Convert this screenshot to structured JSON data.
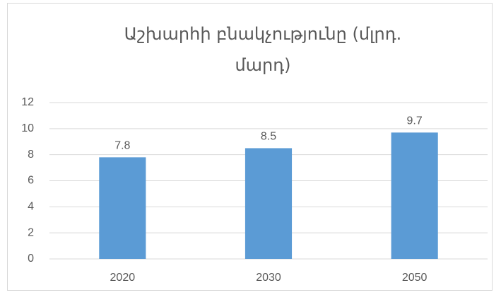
{
  "chart_data": {
    "type": "bar",
    "title": "Աշխարհի բնակչությունը (մլրդ. մարդ)",
    "categories": [
      "2020",
      "2030",
      "2050"
    ],
    "values": [
      7.8,
      8.5,
      9.7
    ],
    "color": "#5b9bd5",
    "ylim": [
      0,
      12
    ],
    "yticks": [
      0,
      2,
      4,
      6,
      8,
      10,
      12
    ],
    "grid": true
  }
}
